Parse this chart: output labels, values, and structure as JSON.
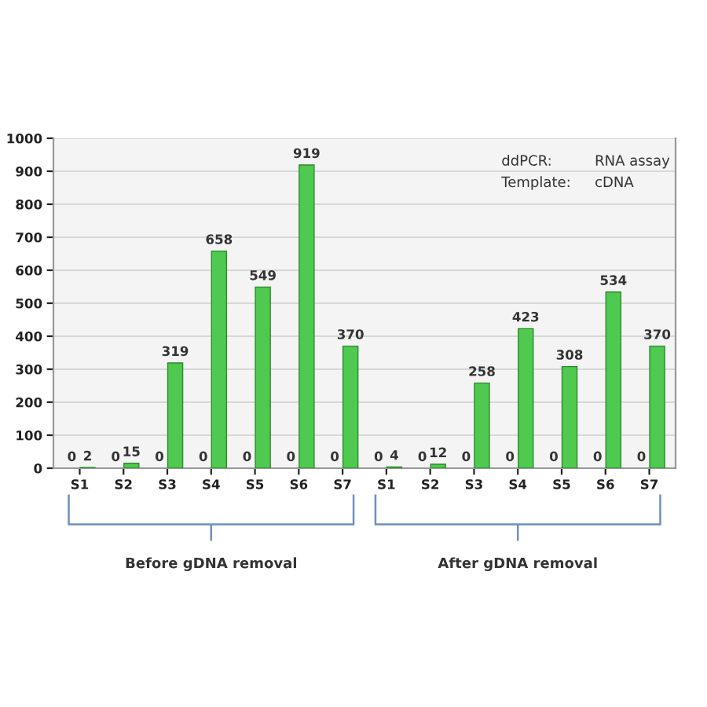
{
  "chart_data": {
    "type": "bar",
    "categories": [
      "S1",
      "S2",
      "S3",
      "S4",
      "S5",
      "S6",
      "S7",
      "S1",
      "S2",
      "S3",
      "S4",
      "S5",
      "S6",
      "S7"
    ],
    "series": [
      {
        "color": "#c0504d",
        "values": [
          0,
          0,
          0,
          0,
          0,
          0,
          0,
          0,
          0,
          0,
          0,
          0,
          0,
          0
        ]
      },
      {
        "color": "#4fc94f",
        "values": [
          2,
          15,
          319,
          658,
          549,
          919,
          370,
          4,
          12,
          258,
          423,
          308,
          534,
          370
        ]
      }
    ],
    "ylim": [
      0,
      1000
    ],
    "yticks": [
      0,
      100,
      200,
      300,
      400,
      500,
      600,
      700,
      800,
      900,
      1000
    ],
    "grid": "y",
    "data_labels": true,
    "annotations": [
      "ddPCR:",
      "RNA assay",
      "Template:",
      "cDNA",
      "Before gDNA removal",
      "After gDNA removal"
    ]
  }
}
